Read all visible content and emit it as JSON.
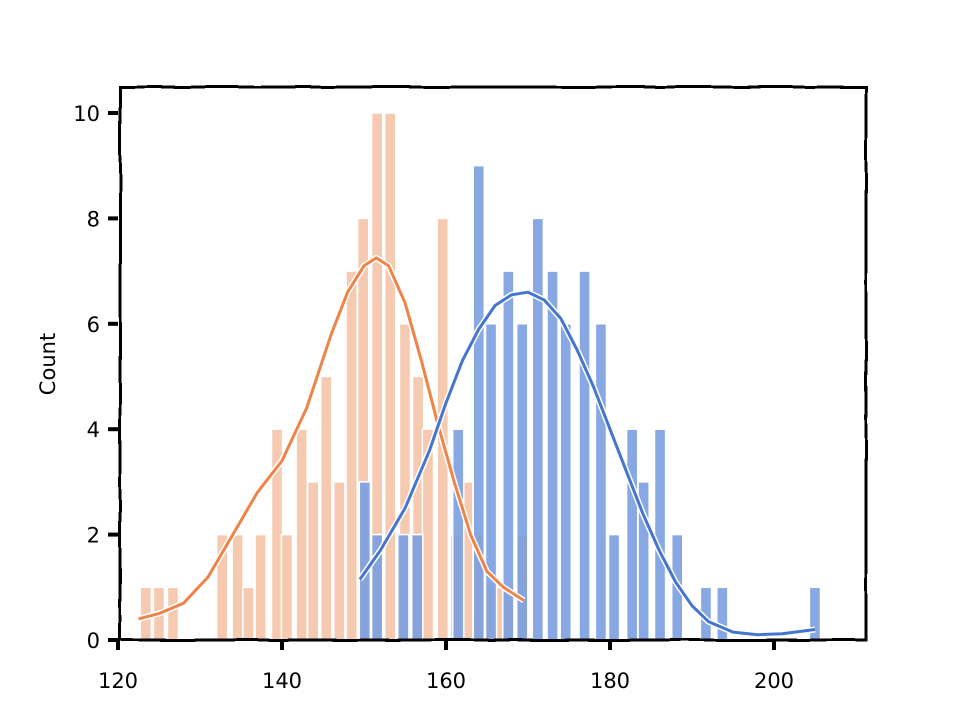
{
  "chart_data": {
    "type": "bar",
    "style": "xkcd histogram with KDE overlay",
    "title": "",
    "xlabel": "",
    "ylabel": "Count",
    "xlim": [
      120,
      210
    ],
    "ylim": [
      0,
      10.5
    ],
    "xticks": [
      120,
      140,
      160,
      180,
      200
    ],
    "yticks": [
      0,
      2,
      4,
      6,
      8,
      10
    ],
    "grid": false,
    "legend": null,
    "bin_width": 1.6,
    "series": [
      {
        "name": "orange",
        "color": "#f5c1a3",
        "kde_color": "#ee8449",
        "bins": [
          {
            "x": 123.4,
            "count": 1
          },
          {
            "x": 125.0,
            "count": 1
          },
          {
            "x": 126.7,
            "count": 1
          },
          {
            "x": 132.7,
            "count": 2
          },
          {
            "x": 134.6,
            "count": 2
          },
          {
            "x": 135.9,
            "count": 1
          },
          {
            "x": 137.4,
            "count": 2
          },
          {
            "x": 139.4,
            "count": 4
          },
          {
            "x": 140.6,
            "count": 2
          },
          {
            "x": 142.4,
            "count": 4
          },
          {
            "x": 143.8,
            "count": 3
          },
          {
            "x": 145.4,
            "count": 5
          },
          {
            "x": 147.0,
            "count": 3
          },
          {
            "x": 148.5,
            "count": 7
          },
          {
            "x": 149.9,
            "count": 8
          },
          {
            "x": 151.6,
            "count": 10
          },
          {
            "x": 153.2,
            "count": 10
          },
          {
            "x": 155.0,
            "count": 6
          },
          {
            "x": 156.6,
            "count": 5
          },
          {
            "x": 157.8,
            "count": 4
          },
          {
            "x": 159.6,
            "count": 8
          },
          {
            "x": 161.2,
            "count": 2
          },
          {
            "x": 162.6,
            "count": 3
          },
          {
            "x": 164.1,
            "count": 2
          },
          {
            "x": 165.4,
            "count": 1
          },
          {
            "x": 166.6,
            "count": 1
          },
          {
            "x": 167.6,
            "count": 1
          },
          {
            "x": 169.3,
            "count": 2
          }
        ],
        "kde": [
          [
            122.5,
            0.4
          ],
          [
            125,
            0.5
          ],
          [
            128,
            0.7
          ],
          [
            131,
            1.2
          ],
          [
            134,
            2.0
          ],
          [
            137,
            2.8
          ],
          [
            140,
            3.4
          ],
          [
            143,
            4.4
          ],
          [
            146,
            5.8
          ],
          [
            148,
            6.6
          ],
          [
            150,
            7.1
          ],
          [
            151.5,
            7.25
          ],
          [
            153,
            7.1
          ],
          [
            155,
            6.4
          ],
          [
            157,
            5.3
          ],
          [
            159,
            4.1
          ],
          [
            161,
            3.0
          ],
          [
            163,
            2.0
          ],
          [
            165,
            1.3
          ],
          [
            167,
            1.0
          ],
          [
            169.5,
            0.75
          ]
        ]
      },
      {
        "name": "blue",
        "color": "#7b9fe0",
        "kde_color": "#4575cf",
        "bins": [
          {
            "x": 150.1,
            "count": 3
          },
          {
            "x": 151.6,
            "count": 2
          },
          {
            "x": 154.8,
            "count": 2
          },
          {
            "x": 156.5,
            "count": 2
          },
          {
            "x": 161.5,
            "count": 4
          },
          {
            "x": 164.0,
            "count": 9
          },
          {
            "x": 165.5,
            "count": 6
          },
          {
            "x": 167.6,
            "count": 7
          },
          {
            "x": 169.3,
            "count": 6
          },
          {
            "x": 171.2,
            "count": 8
          },
          {
            "x": 173.0,
            "count": 7
          },
          {
            "x": 174.6,
            "count": 6
          },
          {
            "x": 176.9,
            "count": 7
          },
          {
            "x": 178.9,
            "count": 6
          },
          {
            "x": 180.5,
            "count": 2
          },
          {
            "x": 182.7,
            "count": 4
          },
          {
            "x": 184.1,
            "count": 3
          },
          {
            "x": 186.1,
            "count": 4
          },
          {
            "x": 188.2,
            "count": 2
          },
          {
            "x": 191.7,
            "count": 1
          },
          {
            "x": 193.7,
            "count": 1
          },
          {
            "x": 205.0,
            "count": 1
          }
        ],
        "kde": [
          [
            149.5,
            1.15
          ],
          [
            152,
            1.7
          ],
          [
            155,
            2.5
          ],
          [
            158,
            3.6
          ],
          [
            160,
            4.5
          ],
          [
            162,
            5.3
          ],
          [
            164,
            5.9
          ],
          [
            166,
            6.35
          ],
          [
            168,
            6.55
          ],
          [
            170,
            6.6
          ],
          [
            172,
            6.45
          ],
          [
            174,
            6.1
          ],
          [
            176,
            5.5
          ],
          [
            178,
            4.8
          ],
          [
            180,
            4.0
          ],
          [
            182,
            3.2
          ],
          [
            184,
            2.4
          ],
          [
            186,
            1.7
          ],
          [
            188,
            1.1
          ],
          [
            190,
            0.65
          ],
          [
            192,
            0.35
          ],
          [
            195,
            0.15
          ],
          [
            198,
            0.1
          ],
          [
            201,
            0.12
          ],
          [
            205,
            0.2
          ]
        ]
      }
    ]
  }
}
